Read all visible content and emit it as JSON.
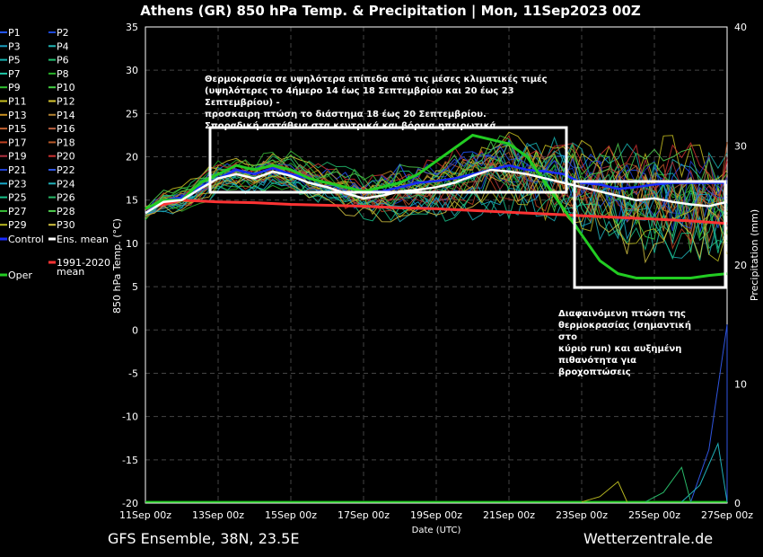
{
  "chart_data": {
    "type": "line",
    "title": "Athens  (GR)  850 hPa Temp. & Precipitation | Mon, 11Sep2023 00Z",
    "xlabel": "Date (UTC)",
    "ylabel": "850 hPa Temp. (°C)",
    "ylabel_right": "Precipitation (mm)",
    "ylim": [
      -20,
      35
    ],
    "ylim_right": [
      0,
      40
    ],
    "yticks": [
      35,
      30,
      25,
      20,
      15,
      10,
      5,
      0,
      -5,
      -10,
      -15,
      -20
    ],
    "yticks_right": [
      40,
      30,
      20,
      10,
      0
    ],
    "x_ticks": [
      "11Sep 00z",
      "13Sep 00z",
      "15Sep 00z",
      "17Sep 00z",
      "19Sep 00z",
      "21Sep 00z",
      "23Sep 00z",
      "25Sep 00z",
      "27Sep 00z"
    ],
    "x_range_hours": [
      0,
      384
    ],
    "grid": true,
    "legend_position": "left",
    "legend": [
      "P1",
      "P2",
      "P3",
      "P4",
      "P5",
      "P6",
      "P7",
      "P8",
      "P9",
      "P10",
      "P11",
      "P12",
      "P13",
      "P14",
      "P15",
      "P16",
      "P17",
      "P18",
      "P19",
      "P20",
      "P21",
      "P22",
      "P23",
      "P24",
      "P25",
      "P26",
      "P27",
      "P28",
      "P29",
      "P30",
      "Control",
      "Ens. mean",
      "Oper",
      "1991-2020 mean"
    ],
    "series": [
      {
        "name": "Control",
        "color": "#1a2cff",
        "width": 2.5,
        "x": [
          0,
          12,
          24,
          36,
          48,
          60,
          72,
          84,
          96,
          108,
          120,
          132,
          144,
          156,
          168,
          180,
          192,
          204,
          216,
          228,
          240,
          252,
          264,
          276,
          288,
          300,
          312,
          324,
          336,
          348,
          360,
          372,
          384
        ],
        "values": [
          13.5,
          15,
          15.3,
          16.5,
          17.5,
          18.5,
          18,
          18.7,
          18,
          17.5,
          17,
          16.5,
          16,
          16,
          16.5,
          17,
          17.2,
          17.5,
          18,
          18.5,
          19,
          18.5,
          18.3,
          18,
          17,
          16.8,
          16.3,
          16.5,
          16.8,
          17,
          17,
          17,
          17
        ]
      },
      {
        "name": "Ens. mean",
        "color": "#ffffff",
        "width": 2.5,
        "x": [
          0,
          12,
          24,
          36,
          48,
          60,
          72,
          84,
          96,
          108,
          120,
          132,
          144,
          156,
          168,
          180,
          192,
          204,
          216,
          228,
          240,
          252,
          264,
          276,
          288,
          300,
          312,
          324,
          336,
          348,
          360,
          372,
          384
        ],
        "values": [
          13.5,
          14.8,
          15,
          16.3,
          17.5,
          18,
          17.5,
          18.3,
          17.8,
          17,
          16.5,
          15.8,
          15.2,
          15.5,
          16,
          16.2,
          16.5,
          17,
          17.8,
          18.5,
          18.3,
          18,
          17.5,
          17,
          16.5,
          16,
          15.5,
          15,
          15.2,
          14.8,
          14.5,
          14.3,
          14.8
        ]
      },
      {
        "name": "Oper",
        "color": "#22cc22",
        "width": 3,
        "x": [
          0,
          12,
          24,
          36,
          48,
          60,
          72,
          84,
          96,
          108,
          120,
          132,
          144,
          156,
          168,
          180,
          192,
          204,
          216,
          228,
          240,
          252,
          264,
          276,
          288,
          300,
          312,
          324,
          336,
          348,
          360,
          372,
          384
        ],
        "values": [
          14,
          15,
          15,
          17,
          18,
          19,
          18.5,
          19,
          18.5,
          17.5,
          17,
          16.5,
          16,
          16.5,
          17,
          18,
          19.5,
          21,
          22.5,
          22,
          21.5,
          20,
          17,
          14,
          11,
          8,
          6.5,
          6,
          6,
          6,
          6,
          6.3,
          6.5
        ]
      },
      {
        "name": "1991-2020 mean",
        "color": "#ff3333",
        "width": 3,
        "x": [
          0,
          24,
          48,
          72,
          96,
          120,
          144,
          168,
          192,
          216,
          240,
          264,
          288,
          312,
          336,
          360,
          384
        ],
        "values": [
          14,
          15,
          14.8,
          14.7,
          14.5,
          14.4,
          14.3,
          14.1,
          14,
          13.8,
          13.6,
          13.4,
          13.2,
          13,
          12.8,
          12.6,
          12.3
        ]
      }
    ],
    "member_colors": [
      "#2255ff",
      "#1c48d8",
      "#1a9ec0",
      "#22b6b6",
      "#16b2b0",
      "#22c070",
      "#20c8a8",
      "#28b028",
      "#30c030",
      "#44d044",
      "#c8c020",
      "#d8c830",
      "#c89020",
      "#b08030",
      "#c06030",
      "#b86040",
      "#c04020",
      "#b85828",
      "#b03040",
      "#cc3030",
      "#2040d0",
      "#2f55e0",
      "#18a8c8",
      "#20b0b8",
      "#18c088",
      "#28b868",
      "#38c038",
      "#50d050",
      "#b8b820",
      "#d0c040"
    ],
    "precip_series": [
      {
        "name": "P22",
        "peak_hour": 384,
        "peak_mm": 15
      },
      {
        "name": "P24",
        "peak_hour": 378,
        "peak_mm": 5
      },
      {
        "name": "P26",
        "peak_hour": 354,
        "peak_mm": 3
      },
      {
        "name": "P29",
        "peak_hour": 312,
        "peak_mm": 1.8
      }
    ]
  },
  "annotations": {
    "box1_lines": [
      "Θερμοκρασία σε υψηλότερα επίπεδα από τις μέσες κλιματικές τιμές",
      "(υψηλότερες το 4ήμερο 14 έως 18 Σεπτεμβρίου και 20 έως 23 Σεπτεμβρίου) -",
      "προσκαιρη πτώση το διάστημα 18 έως 20 Σεπτεμβρίου.",
      "Σποραδική αστάθεια στα κεντρικά και βόρεια ηπειρωτικά."
    ],
    "box2_lines": [
      "Διαφαινόμενη πτώση της",
      "θερμοκρασίας (σημαντική στο",
      "κύριο run) και αυξημένη",
      "πιθανότητα για βροχοπτώσεις"
    ]
  },
  "footer": {
    "left": "GFS Ensemble, 38N, 23.5E",
    "right": "Wetterzentrale.de"
  }
}
